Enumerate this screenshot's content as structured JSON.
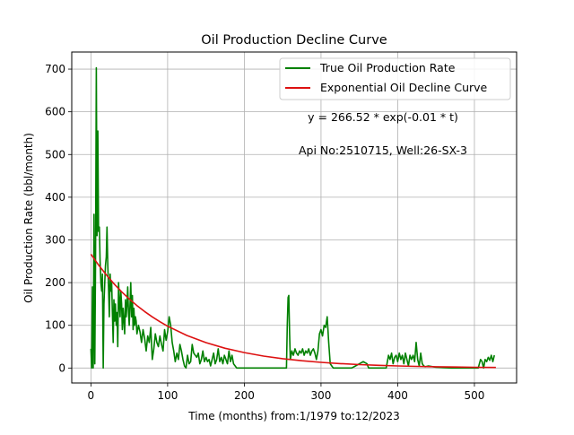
{
  "chart_data": {
    "type": "line",
    "title": "Oil Production Decline Curve",
    "xlabel": "Time (months) from:1/1979 to:12/2023",
    "ylabel": "Oil Production Rate (bbl/month)",
    "xlim": [
      -25,
      555
    ],
    "ylim": [
      -35,
      740
    ],
    "xticks": [
      0,
      100,
      200,
      300,
      400,
      500
    ],
    "yticks": [
      0,
      100,
      200,
      300,
      400,
      500,
      600,
      700
    ],
    "grid": true,
    "legend_position": "top-right",
    "annotations": [
      {
        "text": "y = 266.52 * exp(-0.01 * t)",
        "x": 380,
        "y": 578
      },
      {
        "text": "Api No:2510715, Well:26-SX-3",
        "x": 380,
        "y": 500
      }
    ],
    "series": [
      {
        "name": "True Oil Production Rate",
        "color": "#008000",
        "points": [
          [
            0,
            45
          ],
          [
            1,
            0
          ],
          [
            2,
            190
          ],
          [
            3,
            0
          ],
          [
            4,
            360
          ],
          [
            5,
            10
          ],
          [
            6,
            240
          ],
          [
            7,
            703
          ],
          [
            8,
            310
          ],
          [
            9,
            555
          ],
          [
            10,
            320
          ],
          [
            11,
            330
          ],
          [
            12,
            250
          ],
          [
            13,
            200
          ],
          [
            14,
            180
          ],
          [
            15,
            220
          ],
          [
            16,
            0
          ],
          [
            17,
            150
          ],
          [
            18,
            200
          ],
          [
            19,
            240
          ],
          [
            20,
            260
          ],
          [
            21,
            330
          ],
          [
            22,
            240
          ],
          [
            23,
            190
          ],
          [
            24,
            120
          ],
          [
            25,
            220
          ],
          [
            26,
            180
          ],
          [
            27,
            200
          ],
          [
            28,
            130
          ],
          [
            29,
            60
          ],
          [
            30,
            160
          ],
          [
            31,
            110
          ],
          [
            32,
            150
          ],
          [
            33,
            100
          ],
          [
            34,
            130
          ],
          [
            35,
            50
          ],
          [
            36,
            200
          ],
          [
            37,
            160
          ],
          [
            38,
            120
          ],
          [
            39,
            180
          ],
          [
            40,
            150
          ],
          [
            41,
            90
          ],
          [
            42,
            140
          ],
          [
            43,
            110
          ],
          [
            44,
            80
          ],
          [
            45,
            160
          ],
          [
            46,
            120
          ],
          [
            47,
            150
          ],
          [
            48,
            190
          ],
          [
            49,
            130
          ],
          [
            50,
            100
          ],
          [
            51,
            150
          ],
          [
            52,
            200
          ],
          [
            53,
            120
          ],
          [
            54,
            170
          ],
          [
            55,
            90
          ],
          [
            56,
            140
          ],
          [
            57,
            100
          ],
          [
            58,
            120
          ],
          [
            59,
            110
          ],
          [
            60,
            80
          ],
          [
            62,
            100
          ],
          [
            64,
            85
          ],
          [
            66,
            60
          ],
          [
            68,
            90
          ],
          [
            70,
            70
          ],
          [
            72,
            40
          ],
          [
            74,
            75
          ],
          [
            76,
            60
          ],
          [
            78,
            95
          ],
          [
            80,
            20
          ],
          [
            82,
            45
          ],
          [
            84,
            80
          ],
          [
            86,
            60
          ],
          [
            88,
            50
          ],
          [
            90,
            75
          ],
          [
            92,
            55
          ],
          [
            94,
            40
          ],
          [
            96,
            90
          ],
          [
            98,
            65
          ],
          [
            100,
            85
          ],
          [
            102,
            120
          ],
          [
            104,
            100
          ],
          [
            106,
            60
          ],
          [
            108,
            40
          ],
          [
            110,
            15
          ],
          [
            112,
            35
          ],
          [
            114,
            20
          ],
          [
            116,
            55
          ],
          [
            118,
            40
          ],
          [
            120,
            20
          ],
          [
            122,
            5
          ],
          [
            124,
            0
          ],
          [
            126,
            30
          ],
          [
            128,
            10
          ],
          [
            130,
            15
          ],
          [
            132,
            55
          ],
          [
            134,
            35
          ],
          [
            136,
            30
          ],
          [
            138,
            25
          ],
          [
            140,
            35
          ],
          [
            142,
            10
          ],
          [
            144,
            20
          ],
          [
            146,
            40
          ],
          [
            148,
            15
          ],
          [
            150,
            25
          ],
          [
            152,
            15
          ],
          [
            154,
            20
          ],
          [
            156,
            5
          ],
          [
            158,
            20
          ],
          [
            160,
            35
          ],
          [
            162,
            10
          ],
          [
            164,
            20
          ],
          [
            166,
            45
          ],
          [
            168,
            15
          ],
          [
            170,
            25
          ],
          [
            172,
            10
          ],
          [
            174,
            30
          ],
          [
            176,
            20
          ],
          [
            178,
            10
          ],
          [
            180,
            40
          ],
          [
            182,
            15
          ],
          [
            184,
            30
          ],
          [
            186,
            10
          ],
          [
            188,
            5
          ],
          [
            190,
            0
          ],
          [
            200,
            0
          ],
          [
            210,
            0
          ],
          [
            220,
            0
          ],
          [
            230,
            0
          ],
          [
            240,
            0
          ],
          [
            250,
            0
          ],
          [
            255,
            0
          ],
          [
            256,
            100
          ],
          [
            257,
            165
          ],
          [
            258,
            170
          ],
          [
            259,
            80
          ],
          [
            260,
            20
          ],
          [
            262,
            40
          ],
          [
            264,
            30
          ],
          [
            266,
            45
          ],
          [
            268,
            35
          ],
          [
            270,
            30
          ],
          [
            272,
            40
          ],
          [
            274,
            35
          ],
          [
            276,
            45
          ],
          [
            278,
            30
          ],
          [
            280,
            40
          ],
          [
            282,
            35
          ],
          [
            284,
            45
          ],
          [
            286,
            30
          ],
          [
            288,
            40
          ],
          [
            290,
            45
          ],
          [
            292,
            35
          ],
          [
            294,
            20
          ],
          [
            296,
            40
          ],
          [
            298,
            80
          ],
          [
            300,
            90
          ],
          [
            302,
            75
          ],
          [
            304,
            100
          ],
          [
            306,
            95
          ],
          [
            308,
            120
          ],
          [
            310,
            60
          ],
          [
            312,
            10
          ],
          [
            314,
            5
          ],
          [
            316,
            0
          ],
          [
            320,
            0
          ],
          [
            330,
            0
          ],
          [
            340,
            0
          ],
          [
            345,
            5
          ],
          [
            350,
            10
          ],
          [
            355,
            15
          ],
          [
            360,
            10
          ],
          [
            362,
            0
          ],
          [
            370,
            0
          ],
          [
            380,
            0
          ],
          [
            385,
            0
          ],
          [
            388,
            30
          ],
          [
            390,
            20
          ],
          [
            392,
            35
          ],
          [
            394,
            10
          ],
          [
            396,
            25
          ],
          [
            398,
            30
          ],
          [
            400,
            15
          ],
          [
            402,
            35
          ],
          [
            404,
            20
          ],
          [
            406,
            30
          ],
          [
            408,
            10
          ],
          [
            410,
            35
          ],
          [
            412,
            20
          ],
          [
            414,
            5
          ],
          [
            416,
            30
          ],
          [
            418,
            20
          ],
          [
            420,
            30
          ],
          [
            422,
            15
          ],
          [
            424,
            60
          ],
          [
            426,
            20
          ],
          [
            428,
            5
          ],
          [
            430,
            35
          ],
          [
            432,
            10
          ],
          [
            434,
            5
          ],
          [
            436,
            3
          ],
          [
            440,
            5
          ],
          [
            450,
            2
          ],
          [
            460,
            1
          ],
          [
            470,
            0
          ],
          [
            480,
            0
          ],
          [
            490,
            0
          ],
          [
            500,
            0
          ],
          [
            505,
            0
          ],
          [
            508,
            20
          ],
          [
            510,
            15
          ],
          [
            512,
            0
          ],
          [
            514,
            20
          ],
          [
            516,
            15
          ],
          [
            518,
            25
          ],
          [
            520,
            18
          ],
          [
            522,
            30
          ],
          [
            524,
            15
          ],
          [
            526,
            30
          ]
        ]
      },
      {
        "name": "Exponential Oil Decline Curve",
        "color": "#dd1111",
        "model": {
          "a": 266.52,
          "b": 0.01
        },
        "points": [
          [
            0,
            266.5
          ],
          [
            10,
            241.2
          ],
          [
            20,
            218.2
          ],
          [
            30,
            197.4
          ],
          [
            40,
            178.6
          ],
          [
            50,
            161.7
          ],
          [
            60,
            146.3
          ],
          [
            70,
            132.4
          ],
          [
            80,
            119.8
          ],
          [
            90,
            108.4
          ],
          [
            100,
            98.0
          ],
          [
            125,
            76.3
          ],
          [
            150,
            59.5
          ],
          [
            175,
            46.3
          ],
          [
            200,
            36.1
          ],
          [
            225,
            28.1
          ],
          [
            250,
            21.9
          ],
          [
            275,
            17.0
          ],
          [
            300,
            13.3
          ],
          [
            325,
            10.3
          ],
          [
            350,
            8.1
          ],
          [
            375,
            6.3
          ],
          [
            400,
            4.9
          ],
          [
            425,
            3.8
          ],
          [
            450,
            3.0
          ],
          [
            475,
            2.3
          ],
          [
            500,
            1.8
          ],
          [
            528,
            1.4
          ]
        ]
      }
    ]
  }
}
